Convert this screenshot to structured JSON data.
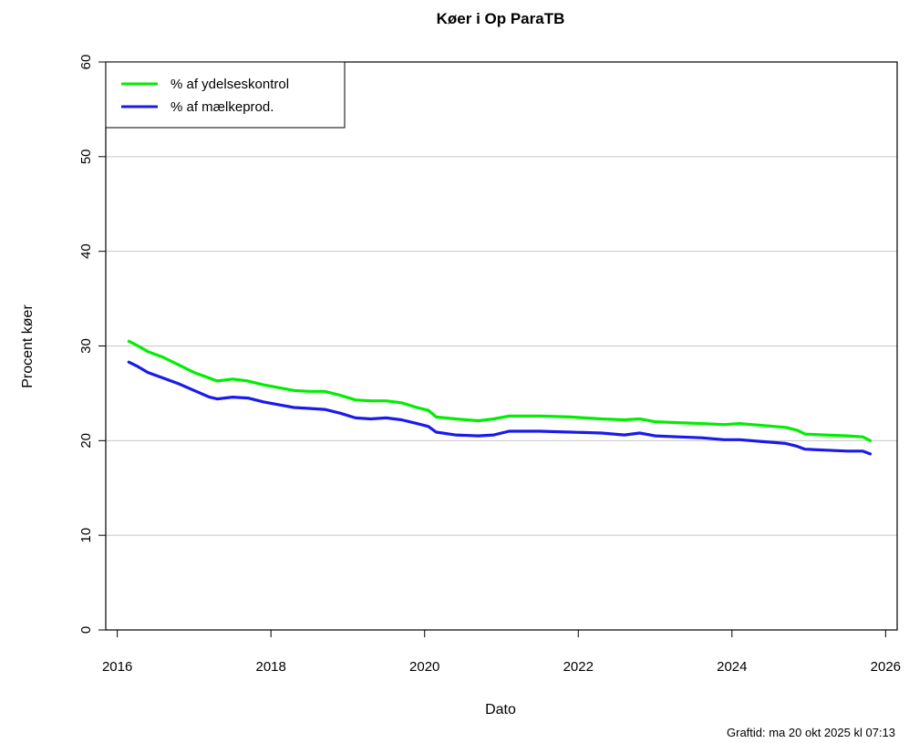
{
  "chart_data": {
    "type": "line",
    "title": "Køer i Op ParaTB",
    "xlabel": "Dato",
    "ylabel": "Procent køer",
    "xlim": [
      2015.85,
      2026.15
    ],
    "ylim": [
      0,
      60
    ],
    "xticks": [
      "2016",
      "2018",
      "2020",
      "2022",
      "2024",
      "2026"
    ],
    "yticks": [
      "0",
      "10",
      "20",
      "30",
      "40",
      "50",
      "60"
    ],
    "grid": "horizontal",
    "legend_position": "top-left",
    "footnote": "Graftid: ma 20 okt 2025 kl 07:13",
    "series": [
      {
        "name": "% af ydelseskontrol",
        "color": "#00ee00",
        "x": [
          2016.15,
          2016.25,
          2016.4,
          2016.6,
          2016.8,
          2017.0,
          2017.2,
          2017.3,
          2017.5,
          2017.7,
          2017.9,
          2018.1,
          2018.3,
          2018.5,
          2018.7,
          2018.9,
          2019.1,
          2019.3,
          2019.5,
          2019.7,
          2019.9,
          2020.05,
          2020.15,
          2020.4,
          2020.7,
          2020.9,
          2021.1,
          2021.5,
          2021.9,
          2022.3,
          2022.6,
          2022.8,
          2023.0,
          2023.3,
          2023.6,
          2023.9,
          2024.1,
          2024.4,
          2024.7,
          2024.85,
          2024.95,
          2025.2,
          2025.5,
          2025.7,
          2025.8
        ],
        "y": [
          30.5,
          30.1,
          29.4,
          28.8,
          28.0,
          27.2,
          26.6,
          26.3,
          26.5,
          26.3,
          25.9,
          25.6,
          25.3,
          25.2,
          25.2,
          24.8,
          24.3,
          24.2,
          24.2,
          24.0,
          23.5,
          23.2,
          22.5,
          22.3,
          22.1,
          22.3,
          22.6,
          22.6,
          22.5,
          22.3,
          22.2,
          22.3,
          22.0,
          21.9,
          21.8,
          21.7,
          21.8,
          21.6,
          21.4,
          21.1,
          20.7,
          20.6,
          20.5,
          20.4,
          20.0
        ]
      },
      {
        "name": "% af mælkeprod.",
        "color": "#1a1aee",
        "x": [
          2016.15,
          2016.25,
          2016.4,
          2016.6,
          2016.8,
          2017.0,
          2017.2,
          2017.3,
          2017.5,
          2017.7,
          2017.9,
          2018.1,
          2018.3,
          2018.5,
          2018.7,
          2018.9,
          2019.1,
          2019.3,
          2019.5,
          2019.7,
          2019.9,
          2020.05,
          2020.15,
          2020.4,
          2020.7,
          2020.9,
          2021.1,
          2021.5,
          2021.9,
          2022.3,
          2022.6,
          2022.8,
          2023.0,
          2023.3,
          2023.6,
          2023.9,
          2024.1,
          2024.4,
          2024.7,
          2024.85,
          2024.95,
          2025.2,
          2025.5,
          2025.7,
          2025.8
        ],
        "y": [
          28.3,
          27.9,
          27.2,
          26.6,
          26.0,
          25.3,
          24.6,
          24.4,
          24.6,
          24.5,
          24.1,
          23.8,
          23.5,
          23.4,
          23.3,
          22.9,
          22.4,
          22.3,
          22.4,
          22.2,
          21.8,
          21.5,
          20.9,
          20.6,
          20.5,
          20.6,
          21.0,
          21.0,
          20.9,
          20.8,
          20.6,
          20.8,
          20.5,
          20.4,
          20.3,
          20.1,
          20.1,
          19.9,
          19.7,
          19.4,
          19.1,
          19.0,
          18.9,
          18.9,
          18.6
        ]
      }
    ]
  }
}
